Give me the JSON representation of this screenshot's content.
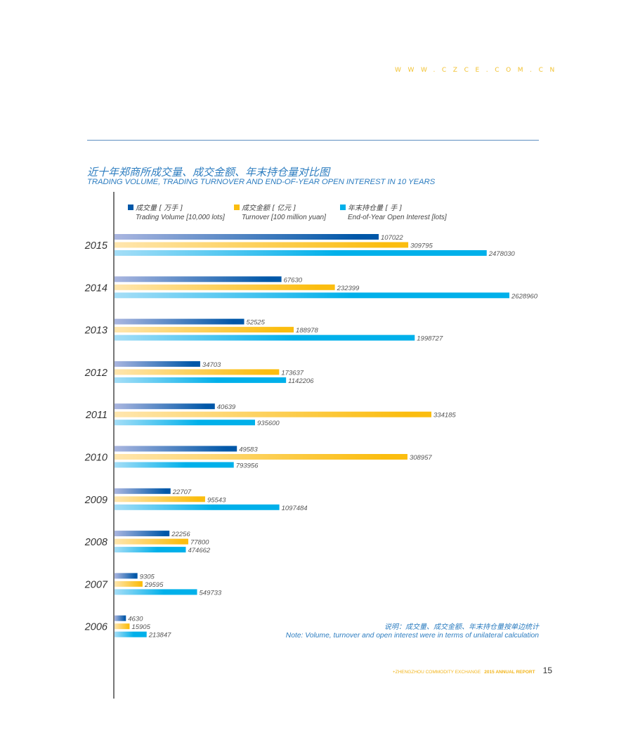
{
  "header": {
    "url": "WWW.CZCE.COM.CN"
  },
  "footer": {
    "org": "+ZHENGZHOU COMMODITY EXCHANGE",
    "report": "2015 ANNUAL REPORT",
    "page_number": "15"
  },
  "note": {
    "cn": "说明：成交量、成交金额、年末持仓量按单边统计",
    "en": "Note: Volume, turnover and open interest were in terms of unilateral calculation"
  },
  "colors": {
    "volume": "#0057a8",
    "volume_light": "#aab6e0",
    "turnover": "#fbbd0f",
    "turnover_light": "#ffe6ae",
    "open_interest": "#00b0ea",
    "open_interest_light": "#a5def7",
    "title": "#2d7dc0",
    "url": "#f2c230"
  },
  "chart_data": {
    "type": "bar",
    "orientation": "horizontal",
    "title": "近十年郑商所成交量、成交金额、年末持仓量对比图",
    "subtitle": "TRADING VOLUME, TRADING TURNOVER AND END-OF-YEAR OPEN INTEREST IN 10 YEARS",
    "xlabel": "",
    "ylabel": "",
    "grid": false,
    "legend_position": "top-left",
    "categories": [
      "2015",
      "2014",
      "2013",
      "2012",
      "2011",
      "2010",
      "2009",
      "2008",
      "2007",
      "2006"
    ],
    "series": [
      {
        "name": "Trading Volume [10,000 lots]",
        "name_cn": "成交量 [ 万手 ]",
        "color_key": "volume",
        "values": [
          107022,
          67630,
          52525,
          34703,
          40639,
          49583,
          22707,
          22256,
          9305,
          4630
        ]
      },
      {
        "name": "Turnover [100 million yuan]",
        "name_cn": "成交金额 [ 亿元 ]",
        "color_key": "turnover",
        "values": [
          309795,
          232399,
          188978,
          173637,
          334185,
          308957,
          95543,
          77800,
          29595,
          15905
        ]
      },
      {
        "name": "End-of-Year Open Interest [lots]",
        "name_cn": "年末持仓量 [ 手 ]",
        "color_key": "open_interest",
        "values": [
          2478030,
          2628960,
          1998727,
          1142206,
          935600,
          793956,
          1097484,
          474662,
          549733,
          213847
        ]
      }
    ],
    "scale_note": "each series scaled independently"
  }
}
